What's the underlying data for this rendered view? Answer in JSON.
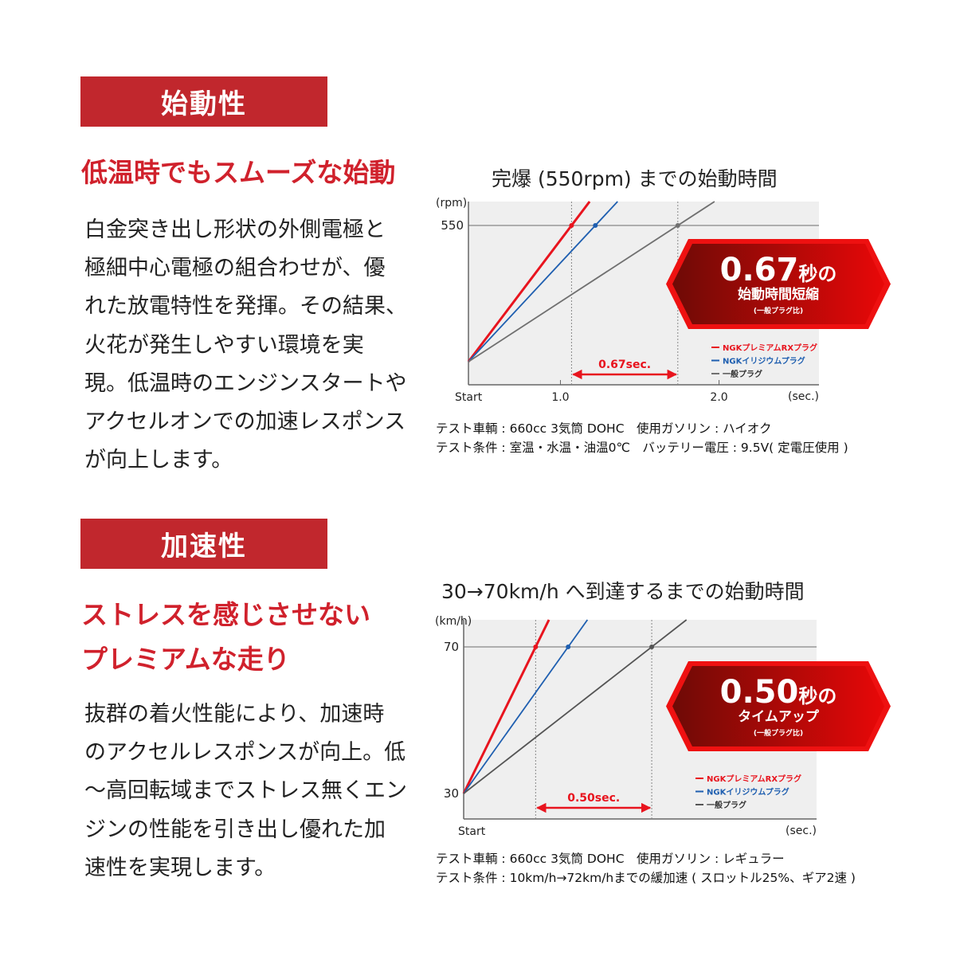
{
  "sections": [
    {
      "header": "始動性",
      "subtitle_lines": [
        "低温時でもスムーズな始動"
      ],
      "body_lines": [
        "白金突き出し形状の外側電極と",
        "極細中心電極の組合わせが、優",
        "れた放電特性を発揮。その結果、",
        "火花が発生しやすい環境を実",
        "現。低温時のエンジンスタートや",
        "アクセルオンでの加速レスポンス",
        "が向上します。"
      ],
      "notes": [
        "テスト車輌 : 660cc 3気筒 DOHC　使用ガソリン : ハイオク",
        "テスト条件 : 室温・水温・油温0℃　バッテリー電圧 : 9.5V( 定電圧使用 )"
      ]
    },
    {
      "header": "加速性",
      "subtitle_lines": [
        "ストレスを感じさせない",
        "プレミアムな走り"
      ],
      "body_lines": [
        "抜群の着火性能により、加速時",
        "のアクセルレスポンスが向上。低",
        "～高回転域までストレス無くエン",
        "ジンの性能を引き出し優れた加",
        "速性を実現します。"
      ],
      "notes": [
        "テスト車輌 : 660cc 3気筒 DOHC　使用ガソリン : レギュラー",
        "テスト条件 : 10km/h→72km/hまでの緩加速 ( スロットル25%、ギア2速 )"
      ]
    }
  ],
  "chart_data": [
    {
      "type": "line",
      "title": "完爆 (550rpm) までの始動時間",
      "ylabel": "(rpm)",
      "xlabel": "(sec.)",
      "x_start_label": "Start",
      "x_ticks": [
        "1.0",
        "2.0"
      ],
      "x_tick_values": [
        1.0,
        2.0
      ],
      "xlim": [
        0.42,
        2.63
      ],
      "y_ticks": [
        "550"
      ],
      "target_value": 550,
      "series": [
        {
          "name": "NGKプレミアムRXプラグ",
          "color": "#e8141e",
          "x_at_target": 1.07
        },
        {
          "name": "NGKイリジウムプラグ",
          "color": "#1f5fb0",
          "x_at_target": 1.22
        },
        {
          "name": "一般プラグ",
          "color": "#707070",
          "x_at_target": 1.74
        }
      ],
      "difference_label": "0.67sec.",
      "badge": {
        "big": "0.67",
        "unit": "秒の",
        "line2": "始動時間短縮",
        "line3": "(一般プラグ比)"
      },
      "grid": false,
      "legend": "bottom-right"
    },
    {
      "type": "line",
      "title": "30→70km/h へ到達するまでの始動時間",
      "ylabel": "(km/h)",
      "xlabel": "(sec.)",
      "x_start_label": "Start",
      "x_ticks": [],
      "xlim": [
        0,
        1.52
      ],
      "y_ticks": [
        "70",
        "30"
      ],
      "start_value": 30,
      "target_value": 70,
      "series": [
        {
          "name": "NGKプレミアムRXプラグ",
          "color": "#e8141e",
          "x_at_target": 0.31
        },
        {
          "name": "NGKイリジウムプラグ",
          "color": "#1f5fb0",
          "x_at_target": 0.45
        },
        {
          "name": "一般プラグ",
          "color": "#555555",
          "x_at_target": 0.81
        }
      ],
      "difference_label": "0.50sec.",
      "badge": {
        "big": "0.50",
        "unit": "秒の",
        "line2": "タイムアップ",
        "line3": "(一般プラグ比)"
      },
      "grid": false,
      "legend": "bottom-right"
    }
  ],
  "colors": {
    "header_bg": "#c1272d",
    "accent_red": "#d0212c",
    "plot_bg": "#efefef"
  }
}
